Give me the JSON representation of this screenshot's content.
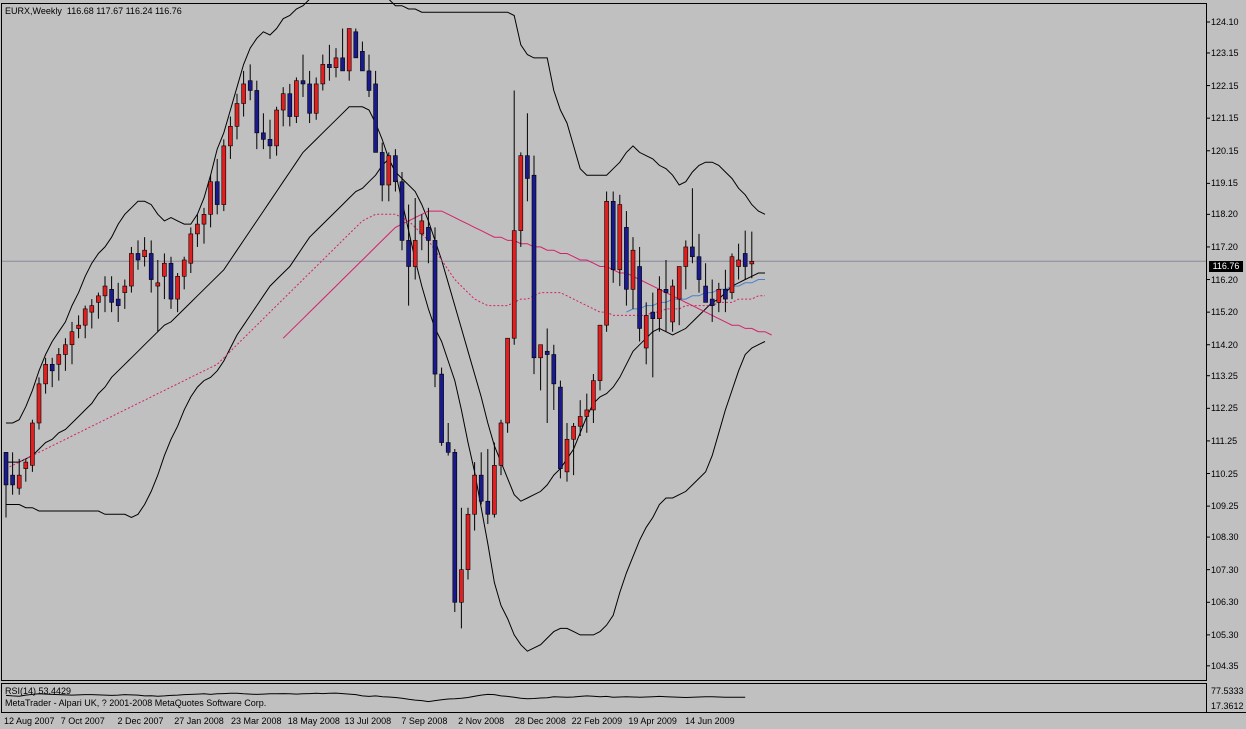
{
  "header": {
    "symbol": "EURX,Weekly",
    "ohlc": "116.68 117.67 116.24 116.76"
  },
  "current_price": "116.76",
  "rsi": {
    "label": "RSI(14) 53.4429",
    "levels": [
      "77.5333",
      "17.3612"
    ]
  },
  "copyright": "MetaTrader - Alpari UK, ? 2001-2008 MetaQuotes Software Corp.",
  "colors": {
    "background": "#c0c0c0",
    "bull": "#e02020",
    "bear": "#1a1a8c",
    "bands": "#000000",
    "ma_red": "#d4206a",
    "ma_blue": "#4a80c8"
  },
  "chart_data": {
    "type": "candlestick",
    "y_ticks": [
      "124.10",
      "123.15",
      "122.15",
      "121.15",
      "120.15",
      "119.15",
      "118.20",
      "117.20",
      "116.20",
      "115.20",
      "114.20",
      "113.25",
      "112.25",
      "111.25",
      "110.25",
      "109.25",
      "108.30",
      "107.30",
      "106.30",
      "105.30",
      "104.35"
    ],
    "y_range": [
      104.0,
      124.5
    ],
    "x_ticks": [
      "12 Aug 2007",
      "7 Oct 2007",
      "2 Dec 2007",
      "27 Jan 2008",
      "23 Mar 2008",
      "18 May 2008",
      "13 Jul 2008",
      "7 Sep 2008",
      "2 Nov 2008",
      "28 Dec 2008",
      "22 Feb 2009",
      "19 Apr 2009",
      "14 Jun 2009"
    ],
    "candles": [
      [
        110.9,
        110.9,
        108.9,
        109.9
      ],
      [
        110.2,
        110.9,
        109.6,
        109.9
      ],
      [
        109.8,
        110.7,
        109.6,
        110.2
      ],
      [
        110.4,
        110.7,
        110.0,
        110.6
      ],
      [
        110.5,
        111.9,
        110.3,
        111.8
      ],
      [
        111.8,
        113.2,
        111.6,
        113.0
      ],
      [
        113.0,
        113.8,
        112.7,
        113.6
      ],
      [
        113.6,
        113.8,
        112.9,
        113.4
      ],
      [
        113.6,
        114.1,
        113.1,
        113.9
      ],
      [
        113.9,
        114.4,
        113.4,
        114.2
      ],
      [
        114.2,
        114.9,
        113.6,
        114.6
      ],
      [
        114.7,
        115.1,
        114.4,
        114.8
      ],
      [
        114.8,
        115.4,
        114.4,
        115.3
      ],
      [
        115.2,
        115.6,
        114.7,
        115.4
      ],
      [
        115.5,
        115.8,
        115.0,
        115.7
      ],
      [
        115.7,
        116.3,
        115.2,
        116.0
      ],
      [
        115.9,
        116.3,
        115.2,
        115.5
      ],
      [
        115.6,
        116.1,
        114.9,
        115.4
      ],
      [
        115.8,
        116.2,
        115.3,
        116.0
      ],
      [
        116.0,
        117.2,
        115.8,
        117.0
      ],
      [
        117.0,
        117.4,
        116.5,
        116.8
      ],
      [
        116.9,
        117.5,
        116.6,
        117.1
      ],
      [
        117.0,
        117.4,
        115.8,
        116.2
      ],
      [
        116.0,
        116.8,
        114.6,
        116.1
      ],
      [
        116.3,
        117.0,
        115.6,
        116.7
      ],
      [
        116.7,
        116.9,
        115.3,
        115.6
      ],
      [
        115.6,
        116.4,
        115.2,
        116.3
      ],
      [
        116.3,
        116.9,
        115.9,
        116.8
      ],
      [
        116.7,
        117.8,
        116.4,
        117.6
      ],
      [
        117.6,
        118.2,
        117.2,
        117.9
      ],
      [
        117.9,
        118.4,
        117.3,
        118.2
      ],
      [
        118.2,
        119.4,
        117.8,
        119.2
      ],
      [
        119.2,
        119.9,
        118.2,
        118.5
      ],
      [
        118.5,
        120.5,
        118.3,
        120.3
      ],
      [
        120.3,
        121.2,
        119.9,
        120.9
      ],
      [
        120.9,
        121.9,
        120.5,
        121.6
      ],
      [
        121.6,
        122.6,
        121.2,
        122.2
      ],
      [
        122.3,
        122.8,
        121.7,
        122.0
      ],
      [
        122.0,
        122.3,
        120.2,
        120.7
      ],
      [
        120.7,
        121.3,
        120.2,
        120.5
      ],
      [
        120.5,
        121.1,
        119.9,
        120.3
      ],
      [
        120.3,
        121.5,
        120.0,
        121.4
      ],
      [
        121.4,
        122.1,
        120.9,
        121.9
      ],
      [
        121.9,
        122.2,
        120.9,
        121.2
      ],
      [
        121.2,
        122.4,
        121.0,
        122.3
      ],
      [
        122.3,
        123.1,
        121.8,
        122.2
      ],
      [
        122.2,
        122.6,
        121.0,
        121.3
      ],
      [
        121.3,
        122.4,
        121.1,
        122.2
      ],
      [
        122.2,
        123.1,
        122.0,
        122.8
      ],
      [
        122.8,
        123.4,
        122.3,
        122.7
      ],
      [
        122.7,
        123.3,
        122.4,
        123.0
      ],
      [
        123.0,
        123.9,
        122.6,
        122.6
      ],
      [
        122.6,
        123.9,
        122.3,
        123.9
      ],
      [
        123.8,
        123.9,
        123.0,
        123.0
      ],
      [
        123.2,
        123.5,
        122.6,
        122.6
      ],
      [
        122.6,
        123.1,
        121.8,
        122.0
      ],
      [
        122.2,
        122.6,
        120.1,
        120.1
      ],
      [
        120.1,
        120.4,
        118.6,
        119.1
      ],
      [
        119.1,
        120.1,
        118.6,
        120.0
      ],
      [
        120.0,
        120.2,
        118.9,
        119.2
      ],
      [
        119.2,
        119.5,
        117.1,
        117.4
      ],
      [
        117.4,
        118.5,
        115.4,
        116.6
      ],
      [
        116.6,
        118.7,
        116.2,
        117.4
      ],
      [
        117.6,
        118.2,
        117.1,
        118.0
      ],
      [
        117.8,
        118.4,
        116.7,
        117.4
      ],
      [
        117.4,
        117.8,
        112.9,
        113.3
      ],
      [
        113.3,
        113.5,
        111.1,
        111.2
      ],
      [
        111.2,
        111.8,
        110.8,
        110.9
      ],
      [
        110.9,
        111.0,
        106.0,
        106.3
      ],
      [
        106.3,
        109.2,
        105.5,
        107.3
      ],
      [
        107.3,
        109.2,
        107.0,
        109.0
      ],
      [
        109.0,
        110.6,
        108.5,
        110.2
      ],
      [
        110.2,
        110.9,
        109.3,
        109.4
      ],
      [
        109.4,
        111.0,
        108.7,
        109.0
      ],
      [
        109.0,
        111.2,
        108.9,
        110.5
      ],
      [
        110.5,
        111.9,
        110.2,
        111.8
      ],
      [
        111.8,
        114.4,
        111.5,
        114.4
      ],
      [
        114.4,
        122.0,
        114.2,
        117.7
      ],
      [
        117.7,
        120.1,
        117.2,
        120.0
      ],
      [
        120.0,
        121.3,
        118.6,
        119.3
      ],
      [
        119.4,
        120.0,
        113.3,
        113.8
      ],
      [
        113.8,
        114.2,
        112.8,
        114.2
      ],
      [
        114.0,
        114.7,
        111.8,
        113.9
      ],
      [
        113.9,
        114.2,
        112.2,
        113.0
      ],
      [
        112.9,
        113.1,
        110.1,
        110.4
      ],
      [
        110.3,
        111.8,
        110.0,
        111.3
      ],
      [
        111.3,
        111.8,
        110.2,
        111.7
      ],
      [
        111.7,
        112.5,
        111.4,
        112.0
      ],
      [
        112.0,
        112.7,
        111.5,
        112.2
      ],
      [
        112.2,
        113.3,
        111.8,
        113.1
      ],
      [
        113.1,
        114.8,
        112.8,
        114.8
      ],
      [
        114.8,
        118.9,
        114.6,
        118.6
      ],
      [
        118.6,
        118.9,
        116.1,
        116.5
      ],
      [
        116.5,
        118.8,
        116.0,
        118.5
      ],
      [
        117.8,
        118.3,
        115.4,
        115.9
      ],
      [
        115.9,
        117.5,
        115.3,
        117.1
      ],
      [
        116.6,
        117.2,
        114.3,
        114.7
      ],
      [
        114.1,
        115.5,
        113.6,
        115.1
      ],
      [
        115.2,
        115.8,
        113.2,
        115.0
      ],
      [
        115.0,
        116.3,
        114.6,
        115.9
      ],
      [
        115.9,
        116.8,
        114.6,
        115.8
      ],
      [
        114.9,
        116.2,
        114.6,
        116.0
      ],
      [
        115.6,
        116.6,
        114.8,
        116.6
      ],
      [
        116.6,
        117.4,
        115.9,
        117.2
      ],
      [
        117.2,
        119.0,
        116.7,
        116.9
      ],
      [
        116.9,
        117.6,
        115.8,
        116.2
      ],
      [
        116.0,
        116.7,
        115.5,
        115.5
      ],
      [
        115.6,
        116.2,
        114.9,
        115.4
      ],
      [
        115.5,
        116.1,
        115.2,
        115.9
      ],
      [
        115.9,
        116.5,
        115.2,
        115.6
      ],
      [
        115.8,
        117.0,
        115.6,
        116.9
      ],
      [
        116.6,
        117.3,
        116.2,
        116.8
      ],
      [
        117.0,
        117.7,
        116.2,
        116.6
      ],
      [
        116.68,
        117.67,
        116.24,
        116.76
      ]
    ],
    "bollinger_upper": [
      111.8,
      111.8,
      111.9,
      112.3,
      112.8,
      113.4,
      113.9,
      114.3,
      114.6,
      114.9,
      115.4,
      115.8,
      116.3,
      116.7,
      117.0,
      117.2,
      117.5,
      117.9,
      118.2,
      118.4,
      118.6,
      118.6,
      118.5,
      118.2,
      118.0,
      118.1,
      118.0,
      117.9,
      117.9,
      118.2,
      118.7,
      119.4,
      120.2,
      120.7,
      121.4,
      122.1,
      122.8,
      123.3,
      123.6,
      123.8,
      123.7,
      123.9,
      124.2,
      124.3,
      124.5,
      124.6,
      124.8,
      124.8,
      124.9,
      125.0,
      125.0,
      125.1,
      125.1,
      125.2,
      125.2,
      125.2,
      125.0,
      124.9,
      124.8,
      124.6,
      124.6,
      124.5,
      124.5,
      124.4,
      124.4,
      124.4,
      124.4,
      124.4,
      124.4,
      124.4,
      124.4,
      124.4,
      124.4,
      124.4,
      124.4,
      124.4,
      124.4,
      124.3,
      123.4,
      123.1,
      123.0,
      123.0,
      123.0,
      122.0,
      121.4,
      121.0,
      120.3,
      119.6,
      119.4,
      119.4,
      119.4,
      119.4,
      119.6,
      119.8,
      120.1,
      120.3,
      120.1,
      120.0,
      119.9,
      119.7,
      119.6,
      119.4,
      119.1,
      119.2,
      119.5,
      119.7,
      119.8,
      119.8,
      119.7,
      119.5,
      119.3,
      119.0,
      118.8,
      118.5,
      118.3,
      118.2
    ],
    "bollinger_middle": [
      110.6,
      110.6,
      110.6,
      110.7,
      110.8,
      111.0,
      111.2,
      111.3,
      111.5,
      111.6,
      111.8,
      112.0,
      112.2,
      112.4,
      112.7,
      112.9,
      113.2,
      113.4,
      113.6,
      113.8,
      114.0,
      114.2,
      114.4,
      114.6,
      114.8,
      114.9,
      115.1,
      115.3,
      115.5,
      115.7,
      115.9,
      116.1,
      116.3,
      116.5,
      116.8,
      117.1,
      117.4,
      117.7,
      118.0,
      118.3,
      118.6,
      118.9,
      119.2,
      119.5,
      119.8,
      120.1,
      120.3,
      120.5,
      120.7,
      120.9,
      121.1,
      121.3,
      121.5,
      121.5,
      121.5,
      121.4,
      121.0,
      120.5,
      119.9,
      119.5,
      119.3,
      119.1,
      118.9,
      118.5,
      118.0,
      117.4,
      116.8,
      116.1,
      115.4,
      114.7,
      114.0,
      113.3,
      112.6,
      111.8,
      111.1,
      110.6,
      110.1,
      109.6,
      109.4,
      109.5,
      109.6,
      109.7,
      109.9,
      110.2,
      110.4,
      110.7,
      111.0,
      111.5,
      112.0,
      112.4,
      112.6,
      112.7,
      112.9,
      113.2,
      113.6,
      114.0,
      114.2,
      114.4,
      114.6,
      114.7,
      114.6,
      114.5,
      114.6,
      114.7,
      114.9,
      115.1,
      115.3,
      115.5,
      115.6,
      115.8,
      116.0,
      116.1,
      116.2,
      116.3,
      116.4,
      116.4
    ],
    "bollinger_lower": [
      109.3,
      109.3,
      109.3,
      109.2,
      109.2,
      109.1,
      109.1,
      109.1,
      109.1,
      109.1,
      109.1,
      109.1,
      109.1,
      109.1,
      109.1,
      109.0,
      109.0,
      109.0,
      109.0,
      108.9,
      109.0,
      109.3,
      109.7,
      110.2,
      110.8,
      111.3,
      111.7,
      112.2,
      112.6,
      112.9,
      113.1,
      113.2,
      113.4,
      113.7,
      114.1,
      114.5,
      114.8,
      115.1,
      115.4,
      115.7,
      116.0,
      116.2,
      116.4,
      116.6,
      116.9,
      117.2,
      117.5,
      117.7,
      117.9,
      118.1,
      118.3,
      118.5,
      118.7,
      118.9,
      119.0,
      119.2,
      119.4,
      119.7,
      119.9,
      119.5,
      118.6,
      117.7,
      116.8,
      116.0,
      115.3,
      114.7,
      114.3,
      113.7,
      113.1,
      112.2,
      111.2,
      110.3,
      109.2,
      108.1,
      106.9,
      106.2,
      105.8,
      105.3,
      105.0,
      104.8,
      104.9,
      105.0,
      105.2,
      105.4,
      105.5,
      105.5,
      105.4,
      105.3,
      105.3,
      105.3,
      105.4,
      105.6,
      105.9,
      106.6,
      107.2,
      107.7,
      108.2,
      108.6,
      108.9,
      109.3,
      109.5,
      109.5,
      109.6,
      109.7,
      109.9,
      110.1,
      110.3,
      110.8,
      111.5,
      112.2,
      112.8,
      113.4,
      113.9,
      114.1,
      114.2,
      114.3
    ],
    "ma_red_dotted": {
      "start": 0,
      "values": [
        110.4,
        110.5,
        110.6,
        110.7,
        110.8,
        110.9,
        111.0,
        111.1,
        111.2,
        111.3,
        111.4,
        111.5,
        111.6,
        111.7,
        111.8,
        111.9,
        112.0,
        112.1,
        112.2,
        112.3,
        112.4,
        112.5,
        112.6,
        112.7,
        112.8,
        112.9,
        113.0,
        113.1,
        113.2,
        113.3,
        113.4,
        113.5,
        113.6,
        113.8,
        114.0,
        114.2,
        114.4,
        114.6,
        114.8,
        115.0,
        115.2,
        115.4,
        115.6,
        115.8,
        116.0,
        116.2,
        116.4,
        116.6,
        116.8,
        117.0,
        117.2,
        117.4,
        117.6,
        117.8,
        118.0,
        118.1,
        118.2,
        118.2,
        118.2,
        118.2,
        118.1,
        118.0,
        117.8,
        117.6,
        117.4,
        117.1,
        116.8,
        116.5,
        116.2,
        116.0,
        115.8,
        115.6,
        115.5,
        115.4,
        115.4,
        115.4,
        115.4,
        115.5,
        115.6,
        115.6,
        115.7,
        115.8,
        115.8,
        115.8,
        115.8,
        115.7,
        115.6,
        115.5,
        115.4,
        115.3,
        115.2,
        115.2,
        115.1,
        115.1,
        115.1,
        115.1,
        115.1,
        115.1,
        115.2,
        115.2,
        115.3,
        115.3,
        115.3,
        115.4,
        115.4,
        115.4,
        115.4,
        115.4,
        115.5,
        115.5,
        115.5,
        115.6,
        115.6,
        115.6,
        115.7,
        115.7
      ]
    },
    "ma_red_solid": {
      "start": 42,
      "values": [
        114.4,
        114.6,
        114.8,
        115.0,
        115.2,
        115.4,
        115.6,
        115.8,
        116.0,
        116.2,
        116.4,
        116.6,
        116.8,
        117.0,
        117.2,
        117.4,
        117.6,
        117.8,
        117.9,
        118.0,
        118.1,
        118.2,
        118.3,
        118.3,
        118.3,
        118.2,
        118.1,
        118.0,
        117.9,
        117.8,
        117.7,
        117.6,
        117.5,
        117.5,
        117.4,
        117.4,
        117.3,
        117.3,
        117.2,
        117.2,
        117.1,
        117.1,
        117.0,
        117.0,
        116.9,
        116.8,
        116.8,
        116.7,
        116.6,
        116.6,
        116.5,
        116.4,
        116.4,
        116.3,
        116.2,
        116.1,
        116.0,
        115.9,
        115.8,
        115.7,
        115.6,
        115.5,
        115.4,
        115.3,
        115.2,
        115.1,
        115.0,
        114.9,
        114.8,
        114.8,
        114.7,
        114.7,
        114.6,
        114.6,
        114.5
      ]
    },
    "ma_blue": {
      "start": 94,
      "values": [
        115.2,
        115.3,
        115.3,
        115.4,
        115.4,
        115.5,
        115.5,
        115.6,
        115.6,
        115.6,
        115.7,
        115.7,
        115.8,
        115.8,
        115.9,
        115.9,
        116.0,
        116.0,
        116.1,
        116.1,
        116.2,
        116.2
      ]
    },
    "rsi_values": [
      60,
      58,
      57,
      61,
      64,
      66,
      65,
      64,
      63,
      62,
      61,
      62,
      63,
      63,
      62,
      61,
      60,
      61,
      63,
      62,
      61,
      58,
      59,
      57,
      58,
      60,
      61,
      63,
      64,
      65,
      66,
      64,
      66,
      67,
      68,
      68,
      66,
      65,
      64,
      65,
      66,
      66,
      67,
      66,
      65,
      66,
      67,
      68,
      67,
      68,
      69,
      67,
      65,
      63,
      58,
      56,
      58,
      55,
      54,
      52,
      49,
      45,
      42,
      40,
      36,
      40,
      43,
      46,
      47,
      49,
      52,
      57,
      61,
      64,
      63,
      58,
      56,
      53,
      49,
      47,
      48,
      50,
      51,
      55,
      54,
      53,
      54,
      56,
      58,
      57,
      55,
      56,
      53,
      54,
      55,
      54,
      53,
      54,
      55,
      56,
      55,
      54,
      53,
      52,
      53,
      54,
      55,
      55,
      54,
      53,
      53,
      53,
      53
    ]
  }
}
